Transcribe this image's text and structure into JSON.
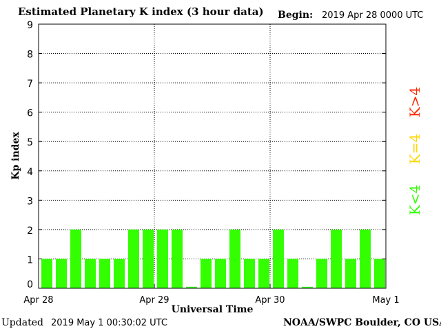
{
  "header": {
    "title": "Estimated Planetary K index (3 hour data)",
    "begin_label": "Begin:",
    "begin_value": "2019 Apr 28 0000 UTC"
  },
  "footer": {
    "updated_label": "Updated",
    "updated_value": "2019 May  1 00:30:02 UTC",
    "source": "NOAA/SWPC Boulder, CO USA"
  },
  "legend": {
    "items": [
      {
        "label": "K>4",
        "color": "#ff2a00"
      },
      {
        "label": "K=4",
        "color": "#ffd700"
      },
      {
        "label": "K<4",
        "color": "#33ff00"
      }
    ]
  },
  "chart_data": {
    "type": "bar",
    "title": "Estimated Planetary K index (3 hour data)",
    "xlabel": "Universal Time",
    "ylabel": "Kp index",
    "ylim": [
      0,
      9
    ],
    "yticks": [
      0,
      1,
      2,
      3,
      4,
      5,
      6,
      7,
      8,
      9
    ],
    "xtick_labels": [
      "Apr 28",
      "Apr 29",
      "Apr 30",
      "May 1"
    ],
    "grid": true,
    "bar_color": "#33ff00",
    "values": [
      1,
      1,
      2,
      1,
      1,
      1,
      2,
      2,
      2,
      2,
      0.05,
      1,
      1,
      2,
      1,
      1,
      2,
      1,
      0.05,
      1,
      2,
      1,
      2,
      1
    ]
  }
}
